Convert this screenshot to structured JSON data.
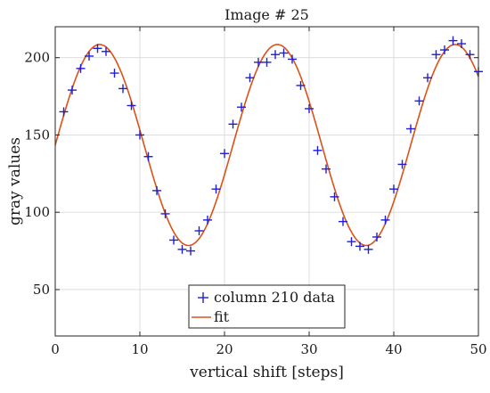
{
  "chart_data": {
    "type": "scatter",
    "title": "Image # 25",
    "xlabel": "vertical shift [steps]",
    "ylabel": "gray values",
    "xlim": [
      0,
      50
    ],
    "ylim": [
      20,
      220
    ],
    "xticks": [
      0,
      10,
      20,
      30,
      40,
      50
    ],
    "yticks": [
      50,
      100,
      150,
      200
    ],
    "xtick_labels": [
      "0",
      "10",
      "20",
      "30",
      "40",
      "50"
    ],
    "ytick_labels": [
      "50",
      "100",
      "150",
      "200"
    ],
    "grid": true,
    "legend_placement": "bottom-center",
    "series": [
      {
        "name": "column 210 data",
        "marker": "plus",
        "color": "#1f1fd6",
        "x": [
          1,
          2,
          3,
          4,
          5,
          6,
          7,
          8,
          9,
          10,
          11,
          12,
          13,
          14,
          15,
          16,
          17,
          18,
          19,
          20,
          21,
          22,
          23,
          24,
          25,
          26,
          27,
          28,
          29,
          30,
          31,
          32,
          33,
          34,
          35,
          36,
          37,
          38,
          39,
          40,
          41,
          42,
          43,
          44,
          45,
          46,
          47,
          48,
          49,
          50
        ],
        "y": [
          165,
          179,
          193,
          201,
          206,
          204,
          190,
          180,
          169,
          150,
          136,
          114,
          99,
          82,
          76,
          75,
          88,
          95,
          115,
          138,
          157,
          168,
          187,
          197,
          197,
          202,
          203,
          199,
          182,
          167,
          140,
          128,
          110,
          94,
          81,
          78,
          76,
          84,
          95,
          115,
          131,
          154,
          172,
          187,
          202,
          205,
          211,
          209,
          202,
          191
        ]
      },
      {
        "name": "fit",
        "type": "line",
        "color": "#d95319",
        "function": {
          "offset": 143.5,
          "amplitude": 65,
          "period": 21,
          "phase_x": 0
        }
      }
    ]
  }
}
